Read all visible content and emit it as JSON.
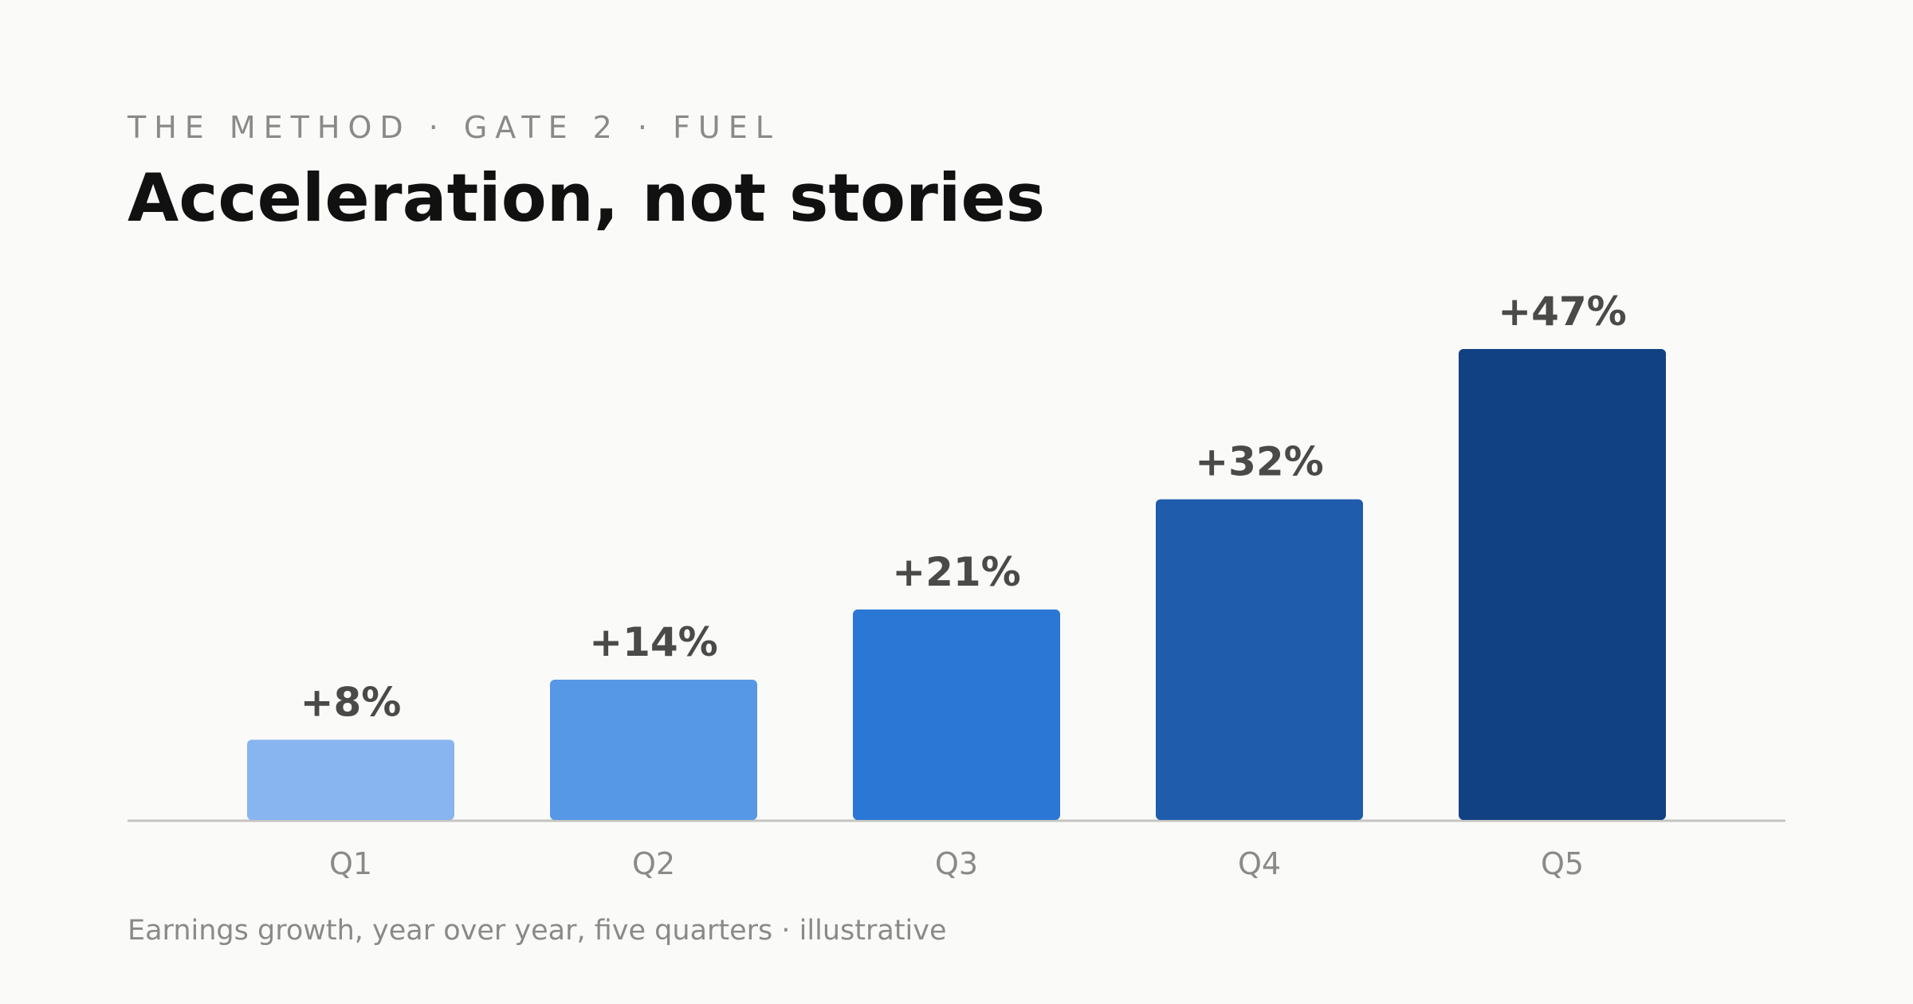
{
  "header": {
    "eyebrow": "THE METHOD · GATE 2 · FUEL",
    "title": "Acceleration, not stories"
  },
  "footnote": "Earnings growth, year over year, five quarters · illustrative",
  "chart_data": {
    "type": "bar",
    "categories": [
      "Q1",
      "Q2",
      "Q3",
      "Q4",
      "Q5"
    ],
    "values": [
      8,
      14,
      21,
      32,
      47
    ],
    "value_labels": [
      "+8%",
      "+14%",
      "+21%",
      "+32%",
      "+47%"
    ],
    "title": "Acceleration, not stories",
    "xlabel": "",
    "ylabel": "",
    "ylim": [
      0,
      47
    ],
    "grid": false,
    "bar_colors": [
      "#88b5f0",
      "#5698e6",
      "#2b77d6",
      "#1f5cab",
      "#114183"
    ],
    "axis_color": "#c4c4c0"
  }
}
